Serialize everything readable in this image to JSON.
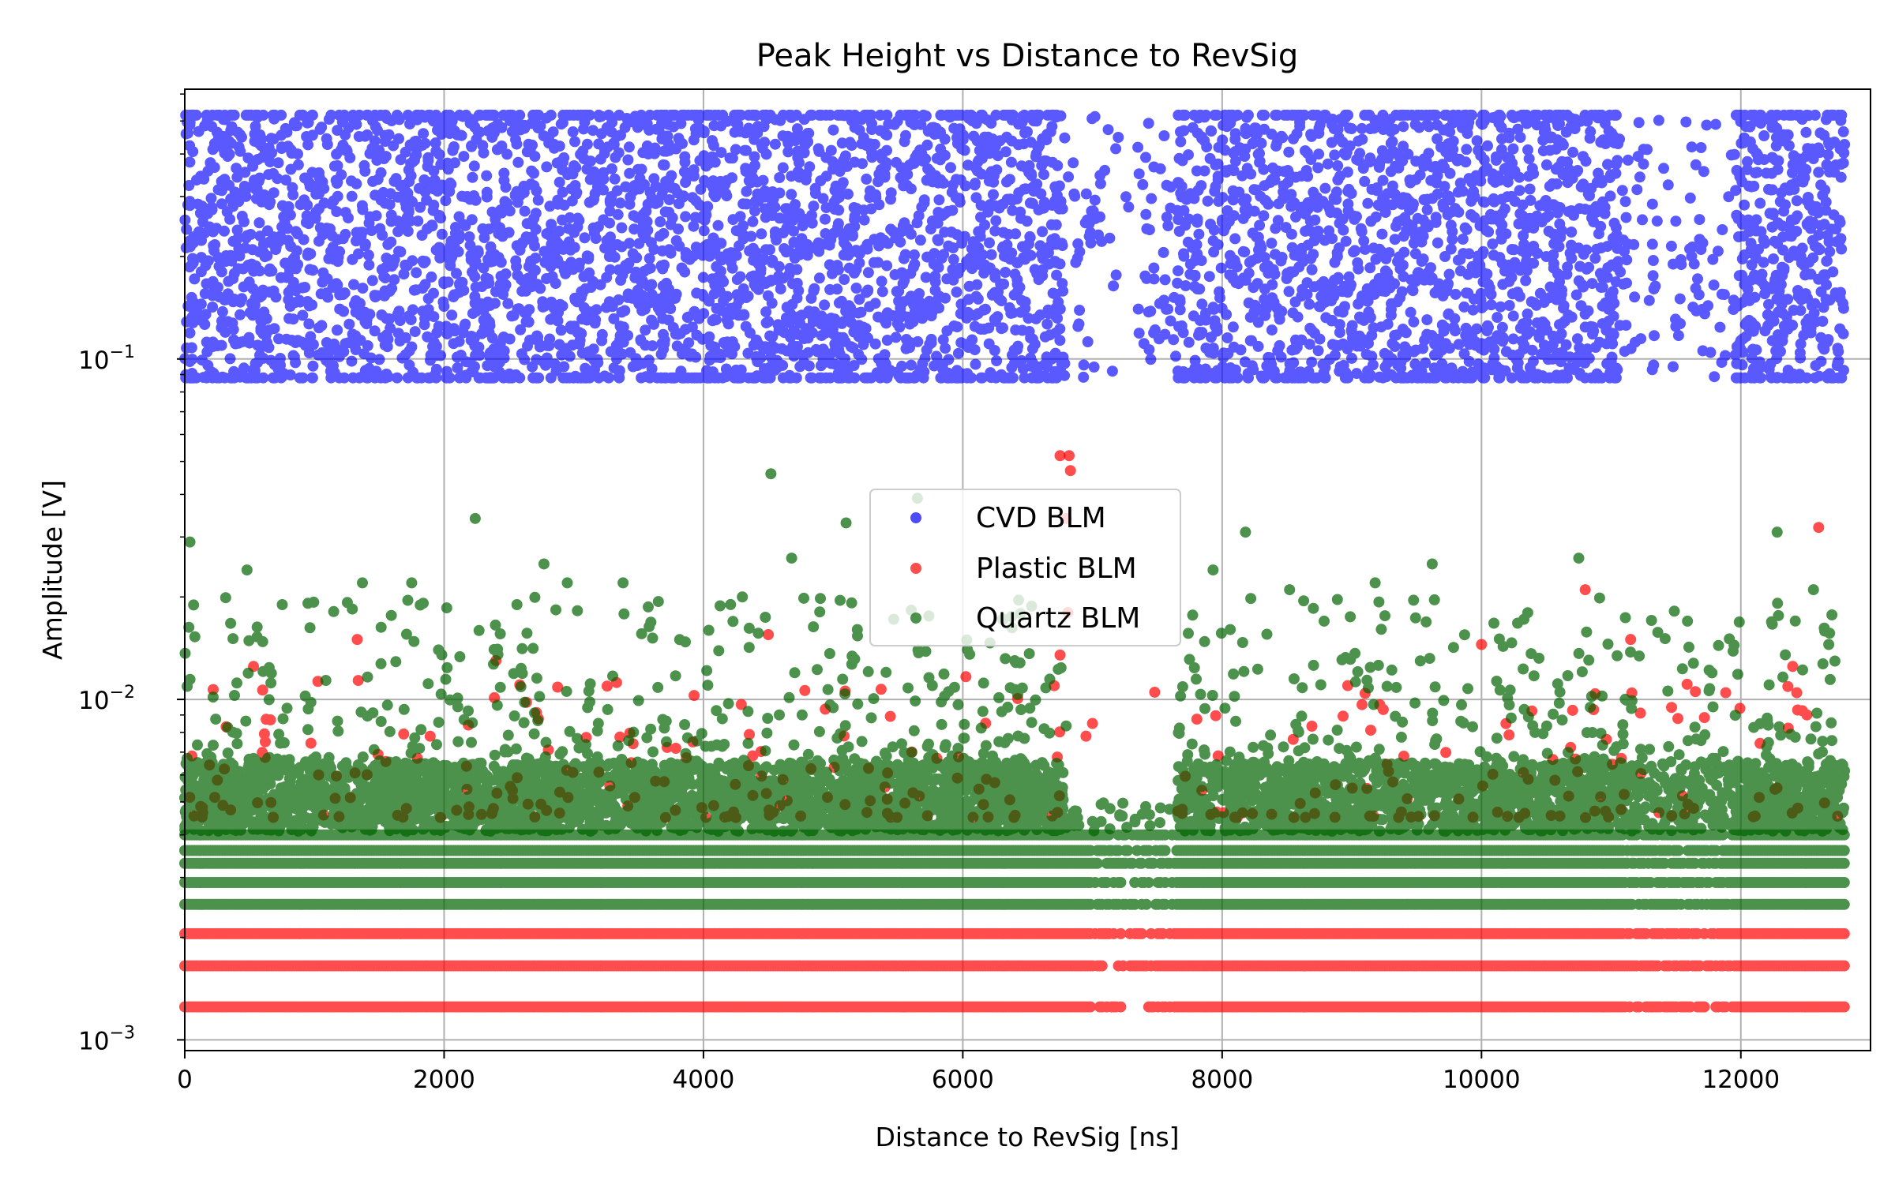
{
  "chart_data": {
    "type": "scatter",
    "title": "Peak Height vs Distance to RevSig",
    "xlabel": "Distance to RevSig [ns]",
    "ylabel": "Amplitude [V]",
    "xlim": [
      0,
      13000
    ],
    "ylim": [
      0.00093,
      0.62
    ],
    "yscale": "log",
    "grid": true,
    "legend_position": "center",
    "x_ticks": [
      {
        "value": 0,
        "label": "0"
      },
      {
        "value": 2000,
        "label": "2000"
      },
      {
        "value": 4000,
        "label": "4000"
      },
      {
        "value": 6000,
        "label": "6000"
      },
      {
        "value": 8000,
        "label": "8000"
      },
      {
        "value": 10000,
        "label": "10000"
      },
      {
        "value": 12000,
        "label": "12000"
      }
    ],
    "y_ticks": [
      {
        "value": 0.001,
        "base": "10",
        "exp": "−3"
      },
      {
        "value": 0.01,
        "base": "10",
        "exp": "−2"
      },
      {
        "value": 0.1,
        "base": "10",
        "exp": "−1"
      }
    ],
    "series": [
      {
        "name": "CVD BLM",
        "color": "#0000ff",
        "amplitude_range": [
          0.088,
          0.52
        ],
        "x_range": [
          0,
          12800
        ],
        "sparse_x_ranges": [
          [
            6780,
            7650
          ],
          [
            11050,
            11950
          ]
        ],
        "gap_x_range": [
          7200,
          7350
        ],
        "outliers": []
      },
      {
        "name": "Plastic BLM",
        "color": "#ff0000",
        "baseline_levels": [
          0.00125,
          0.00165,
          0.00205
        ],
        "x_range": [
          0,
          12800
        ],
        "outliers": [
          {
            "x": 6750,
            "y": 0.052
          },
          {
            "x": 6820,
            "y": 0.052
          },
          {
            "x": 6830,
            "y": 0.047
          },
          {
            "x": 6800,
            "y": 0.034
          },
          {
            "x": 6810,
            "y": 0.018
          },
          {
            "x": 6750,
            "y": 0.0135
          },
          {
            "x": 7480,
            "y": 0.0105
          },
          {
            "x": 6950,
            "y": 0.0078
          },
          {
            "x": 12600,
            "y": 0.032
          },
          {
            "x": 10800,
            "y": 0.021
          },
          {
            "x": 1330,
            "y": 0.015
          },
          {
            "x": 4500,
            "y": 0.0155
          },
          {
            "x": 11150,
            "y": 0.015
          },
          {
            "x": 12400,
            "y": 0.0125
          },
          {
            "x": 530,
            "y": 0.0125
          },
          {
            "x": 2400,
            "y": 0.013
          },
          {
            "x": 10000,
            "y": 0.0145
          },
          {
            "x": 7000,
            "y": 0.0085
          }
        ]
      },
      {
        "name": "Quartz BLM",
        "color": "#006400",
        "baseline_levels": [
          0.0025,
          0.0029,
          0.0033,
          0.0036,
          0.004
        ],
        "x_range": [
          0,
          12800
        ],
        "outliers": [
          {
            "x": 4520,
            "y": 0.046
          },
          {
            "x": 5650,
            "y": 0.039
          },
          {
            "x": 2240,
            "y": 0.034
          },
          {
            "x": 8180,
            "y": 0.031
          },
          {
            "x": 5100,
            "y": 0.033
          },
          {
            "x": 40,
            "y": 0.029
          },
          {
            "x": 12280,
            "y": 0.031
          },
          {
            "x": 4680,
            "y": 0.026
          },
          {
            "x": 2770,
            "y": 0.025
          },
          {
            "x": 10750,
            "y": 0.026
          },
          {
            "x": 9620,
            "y": 0.025
          },
          {
            "x": 7930,
            "y": 0.024
          },
          {
            "x": 480,
            "y": 0.024
          },
          {
            "x": 3380,
            "y": 0.022
          },
          {
            "x": 1370,
            "y": 0.022
          },
          {
            "x": 1750,
            "y": 0.022
          },
          {
            "x": 8520,
            "y": 0.021
          },
          {
            "x": 2950,
            "y": 0.022
          },
          {
            "x": 9180,
            "y": 0.022
          },
          {
            "x": 4300,
            "y": 0.02
          },
          {
            "x": 12560,
            "y": 0.021
          }
        ]
      }
    ]
  }
}
